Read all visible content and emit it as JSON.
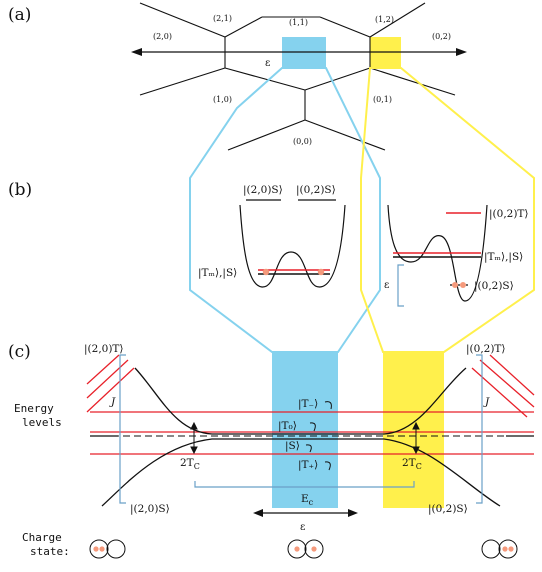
{
  "panels": {
    "a": "(a)",
    "b": "(b)",
    "c": "(c)"
  },
  "panel_a": {
    "region_labels": [
      "(2,0)",
      "(2,1)",
      "(1,1)",
      "(1,2)",
      "(0,2)",
      "(1,0)",
      "(0,1)",
      "(0,0)"
    ],
    "axis_label": "ε"
  },
  "panel_b": {
    "left": {
      "upper_levels": [
        "|(2,0)S⟩",
        "|(0,2)S⟩"
      ],
      "lower_level": "|Tₘ⟩,|S⟩"
    },
    "right": {
      "top_level": "|(0,2)T⟩",
      "mid_level": "|Tₘ⟩,|S⟩",
      "low_level": "|(0,2)S⟩",
      "gap_label": "ε"
    }
  },
  "panel_c": {
    "corner_left_top": "|(2,0)T⟩",
    "corner_right_top": "|(0,2)T⟩",
    "corner_left_bottom": "|(2,0)S⟩",
    "corner_right_bottom": "|(0,2)S⟩",
    "exchange_left": "J",
    "exchange_right": "J",
    "levels": [
      "|T₋⟩",
      "|T₀⟩",
      "|S⟩",
      "|T₊⟩"
    ],
    "tunnel_left": "2T",
    "tunnel_right": "2T",
    "tunnel_sub": "C",
    "charging_label": "E",
    "charging_sub": "c",
    "axis_label": "ε",
    "energy_label_1": "Energy",
    "energy_label_2": "levels",
    "charge_label_1": "Charge",
    "charge_label_2": "state:"
  },
  "colors": {
    "blue": "#85d2ee",
    "yellow": "#fff04c",
    "red": "#e8212a",
    "dot": "#f59a7c",
    "bracket": "#6aa0c8"
  }
}
